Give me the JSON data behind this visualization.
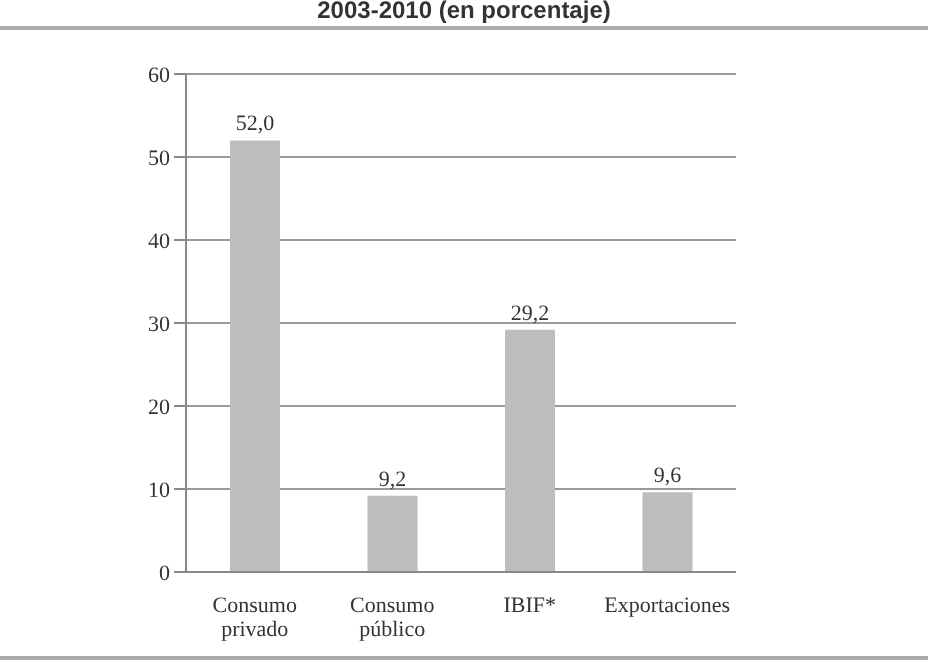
{
  "chart_data": {
    "type": "bar",
    "title": "2003-2010 (en porcentaje)",
    "categories": [
      "Consumo privado",
      "Consumo público",
      "IBIF*",
      "Exportaciones"
    ],
    "values": [
      52.0,
      9.2,
      29.2,
      9.6
    ],
    "color": "#bdbdbd",
    "ylim": [
      0,
      60
    ],
    "yticks": [
      0,
      10,
      20,
      30,
      40,
      50,
      60
    ],
    "value_labels": [
      "52,0",
      "9,2",
      "29,2",
      "9,6"
    ],
    "grid": "y"
  }
}
